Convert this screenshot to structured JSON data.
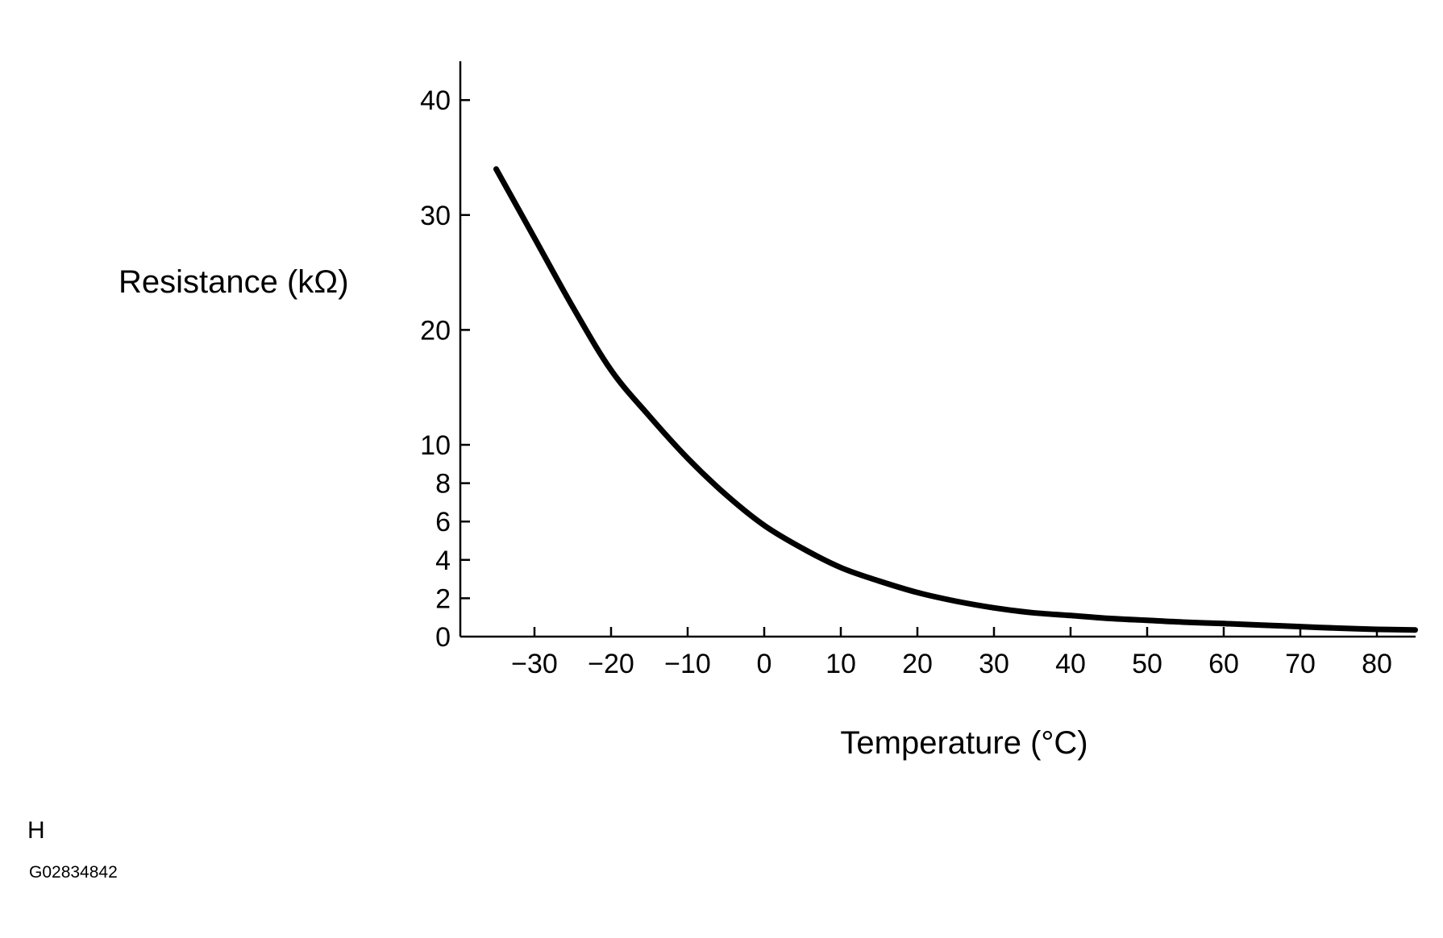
{
  "chart_data": {
    "type": "line",
    "title": "",
    "xlabel": "Temperature (°C)",
    "ylabel": "Resistance (kΩ)",
    "xlim": [
      -40,
      85
    ],
    "ylim": [
      0,
      43
    ],
    "x_ticks": [
      -30,
      -20,
      -10,
      0,
      10,
      20,
      30,
      40,
      50,
      60,
      70,
      80
    ],
    "x_tick_labels": [
      "−30",
      "−20",
      "−10",
      "0",
      "10",
      "20",
      "30",
      "40",
      "50",
      "60",
      "70",
      "80"
    ],
    "y_scale": "piecewise linear (0–10 compressed: 2 kΩ per minor step; 10–40 at 10 kΩ per step)",
    "y_ticks": [
      0,
      2,
      4,
      6,
      8,
      10,
      20,
      30,
      40
    ],
    "y_tick_labels": [
      "0",
      "2",
      "4",
      "6",
      "8",
      "10",
      "20",
      "30",
      "40"
    ],
    "grid": false,
    "legend": "none",
    "line_color": "#000000",
    "series": [
      {
        "x": [
          -35,
          -30,
          -25,
          -20,
          -15,
          -10,
          -5,
          0,
          5,
          10,
          15,
          20,
          25,
          30,
          35,
          40,
          45,
          50,
          55,
          60,
          65,
          70,
          75,
          80,
          85
        ],
        "y": [
          34.0,
          28.0,
          22.0,
          16.5,
          12.5,
          9.3,
          7.4,
          5.8,
          4.6,
          3.6,
          2.9,
          2.3,
          1.85,
          1.5,
          1.25,
          1.1,
          0.95,
          0.85,
          0.75,
          0.68,
          0.6,
          0.52,
          0.44,
          0.38,
          0.35
        ]
      }
    ]
  },
  "figure": {
    "corner_letter": "H",
    "code": "G02834842"
  }
}
